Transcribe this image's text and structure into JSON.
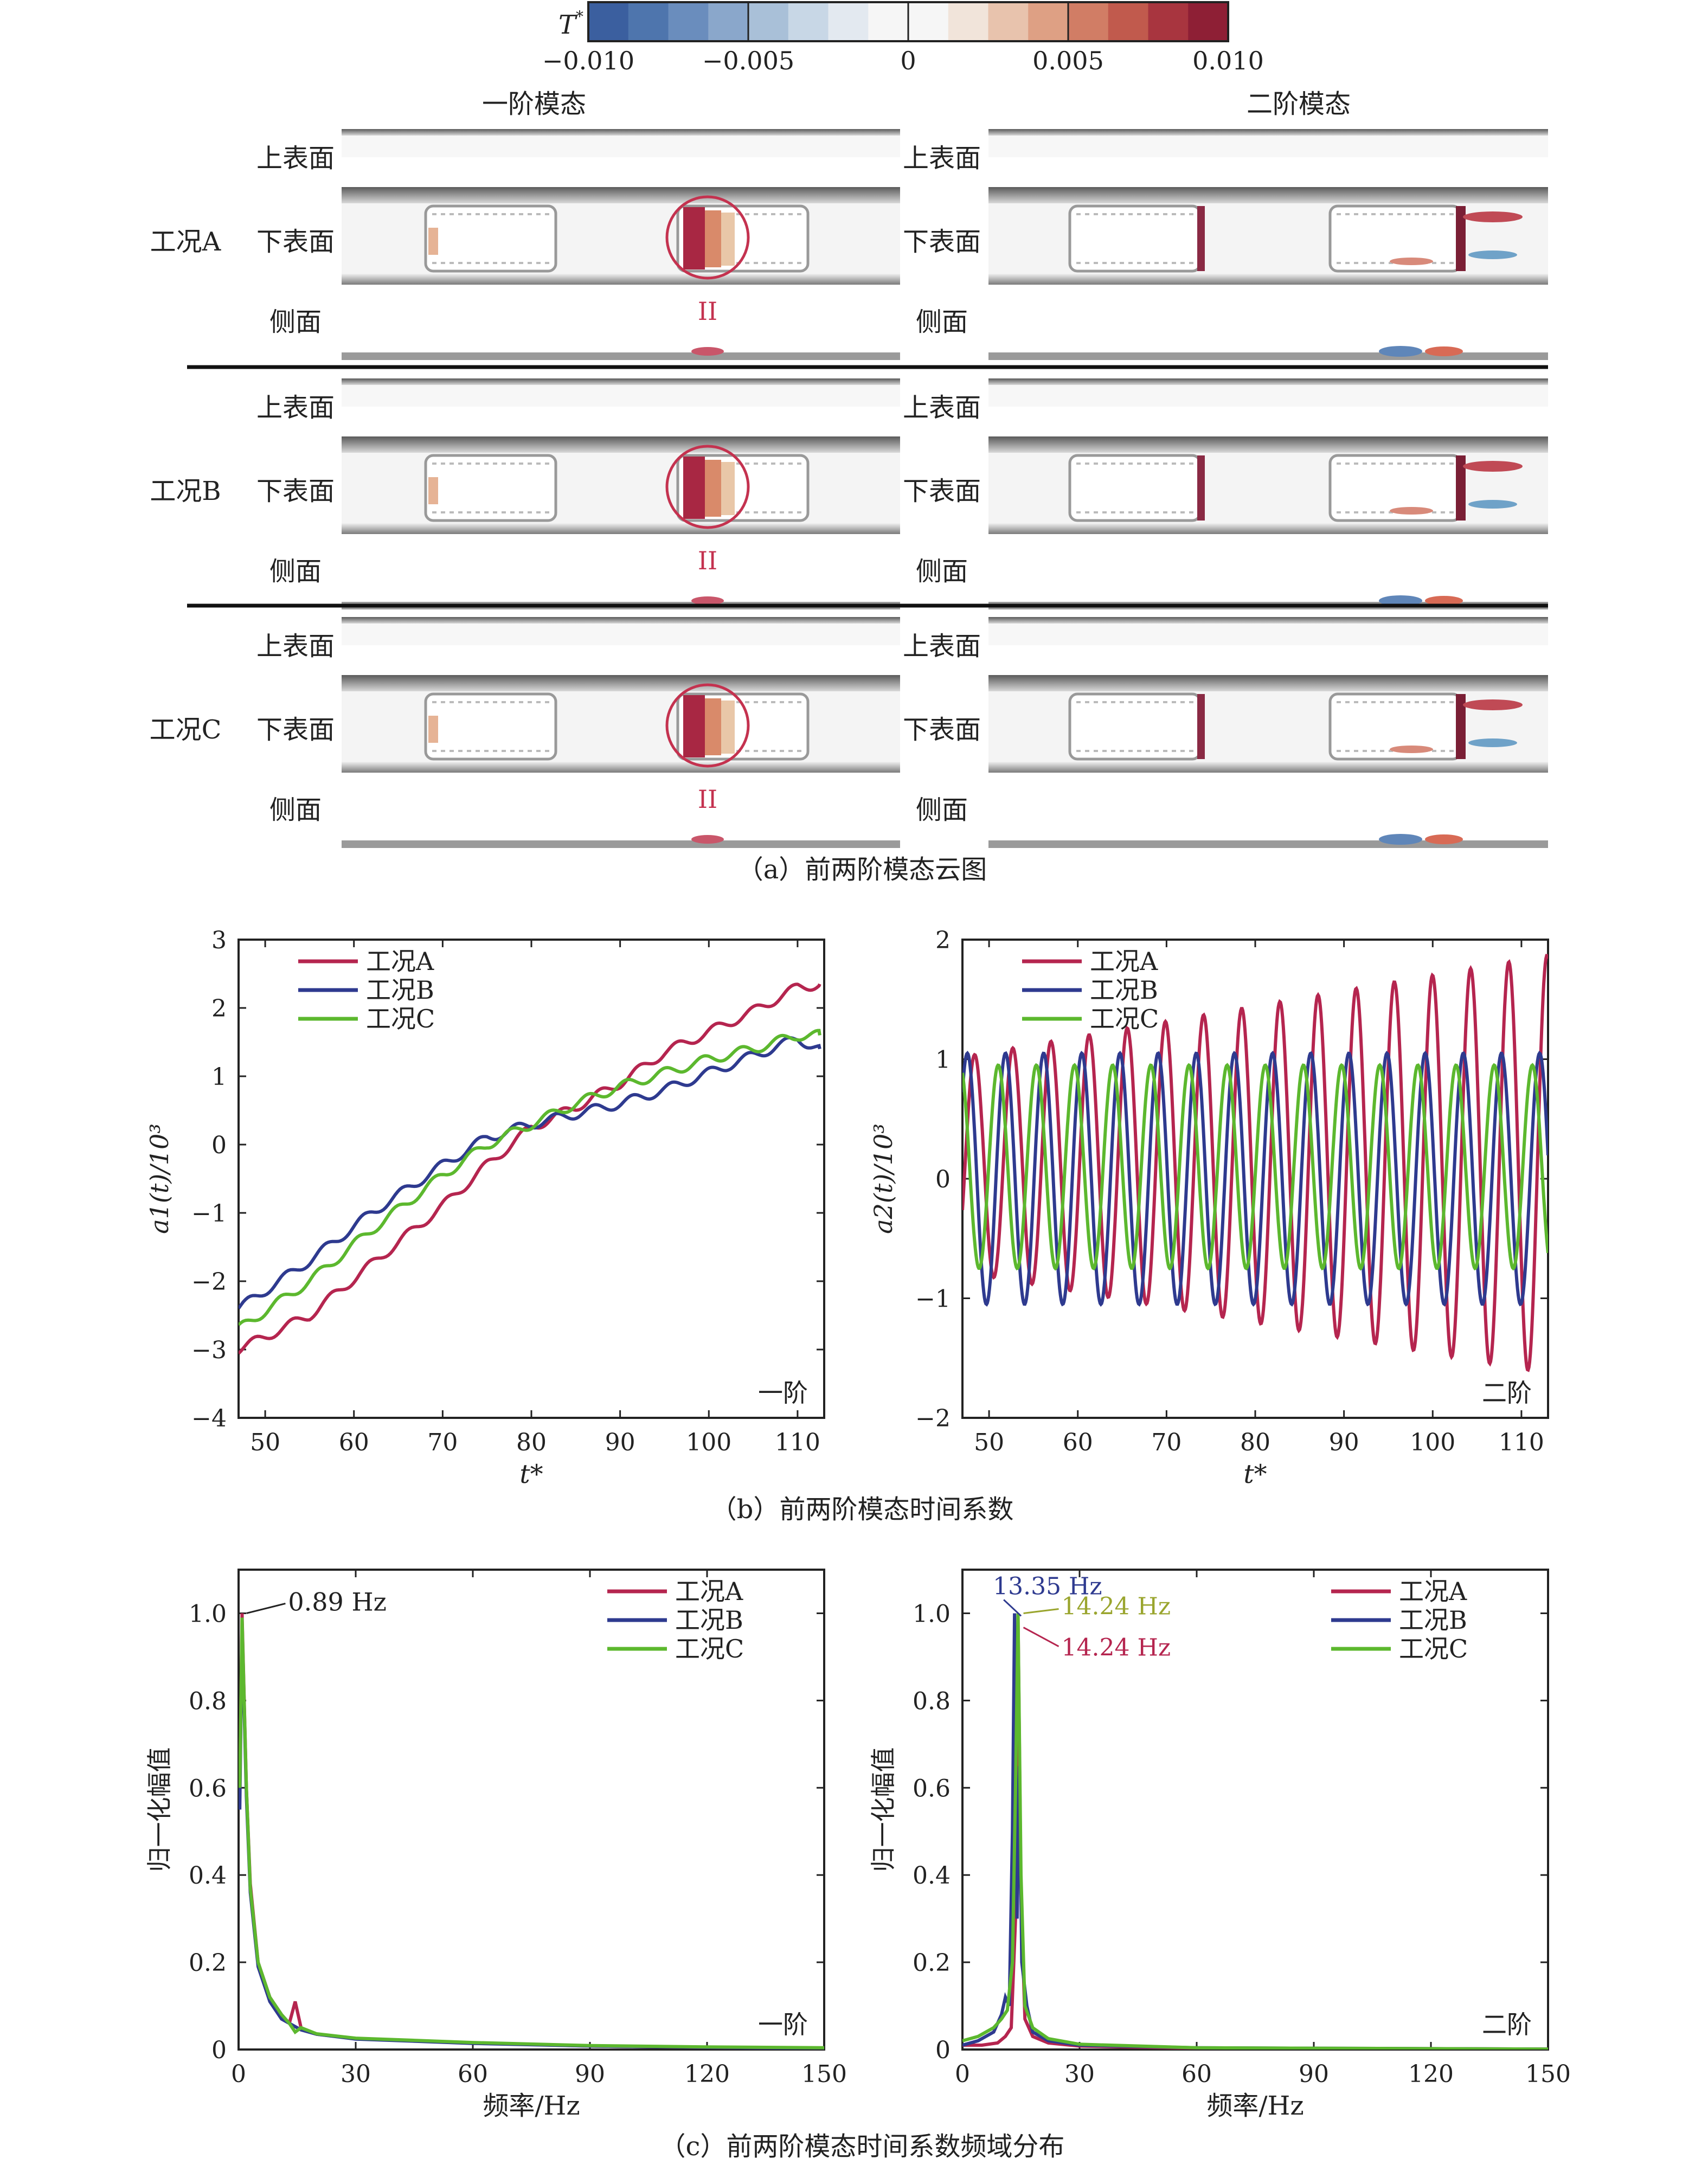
{
  "colorbar": {
    "symbol": "T",
    "sup": "*",
    "ticks": [
      "−0.010",
      "−0.005",
      "0",
      "0.005",
      "0.010"
    ],
    "colors": [
      "#3b5f9f",
      "#4e75ad",
      "#6a8dbd",
      "#8aa7cb",
      "#a9c0d8",
      "#c8d7e6",
      "#e3e9f0",
      "#f6f6f6",
      "#f6f6f6",
      "#f1e4da",
      "#e8c3ad",
      "#dea084",
      "#d17d65",
      "#c15a4d",
      "#a8353f",
      "#8e1f35"
    ]
  },
  "panel_a": {
    "col_titles": [
      "一阶模态",
      "二阶模态"
    ],
    "cases": [
      "工况A",
      "工况B",
      "工况C"
    ],
    "surfaces": [
      "上表面",
      "下表面",
      "侧面"
    ],
    "marker": "II",
    "caption": "（a）前两阶模态云图"
  },
  "panel_b_caption": "（b）前两阶模态时间系数",
  "panel_c_caption": "（c）前两阶模态时间系数频域分布",
  "legend": [
    "工况A",
    "工况B",
    "工况C"
  ],
  "series_colors": [
    "#b5254f",
    "#2e3a8f",
    "#5cb82e"
  ],
  "chart_data": [
    {
      "type": "line",
      "title": "一阶",
      "xlabel": "t*",
      "ylabel": "a1(t)/10³",
      "xlim": [
        47,
        113
      ],
      "ylim": [
        -4,
        3
      ],
      "xticks": [
        "50",
        "60",
        "70",
        "80",
        "90",
        "100",
        "110"
      ],
      "yticks": [
        "−4",
        "−3",
        "−2",
        "−1",
        "0",
        "1",
        "2",
        "3"
      ],
      "series": [
        {
          "name": "工况A",
          "x": [
            47,
            55,
            62,
            70,
            75,
            80,
            85,
            90,
            95,
            100,
            105,
            110,
            112.5
          ],
          "y": [
            -3.0,
            -2.5,
            -1.75,
            -0.9,
            -0.3,
            0.25,
            0.55,
            0.9,
            1.35,
            1.65,
            1.95,
            2.3,
            2.35
          ]
        },
        {
          "name": "工况B",
          "x": [
            47,
            55,
            62,
            70,
            75,
            80,
            85,
            90,
            95,
            100,
            105,
            110,
            112.5
          ],
          "y": [
            -2.4,
            -1.7,
            -1.0,
            -0.3,
            0.1,
            0.3,
            0.45,
            0.6,
            0.8,
            1.05,
            1.3,
            1.55,
            1.4
          ]
        },
        {
          "name": "工况C",
          "x": [
            47,
            55,
            62,
            70,
            75,
            80,
            85,
            90,
            95,
            100,
            105,
            110,
            112.5
          ],
          "y": [
            -2.7,
            -2.0,
            -1.25,
            -0.45,
            0.0,
            0.3,
            0.6,
            0.85,
            1.05,
            1.25,
            1.4,
            1.6,
            1.6
          ]
        }
      ]
    },
    {
      "type": "line",
      "title": "二阶",
      "xlabel": "t*",
      "ylabel": "a2(t)/10³",
      "xlim": [
        47,
        113
      ],
      "ylim": [
        -2,
        2
      ],
      "xticks": [
        "50",
        "60",
        "70",
        "80",
        "90",
        "100",
        "110"
      ],
      "yticks": [
        "−2",
        "−1",
        "0",
        "1",
        "2"
      ],
      "series": [
        {
          "name": "工况A",
          "period": 4.3,
          "phase": 0.0,
          "amp_start": 0.9,
          "amp_end": 1.75,
          "offset": 0.12
        },
        {
          "name": "工况B",
          "period": 4.3,
          "phase": 1.2,
          "amp_start": 1.05,
          "amp_end": 1.05,
          "offset": 0.0
        },
        {
          "name": "工况C",
          "period": 4.3,
          "phase": 2.4,
          "amp_start": 0.85,
          "amp_end": 0.85,
          "offset": 0.1
        }
      ]
    },
    {
      "type": "line",
      "title": "一阶",
      "xlabel": "频率/Hz",
      "ylabel": "归一化幅值",
      "xlim": [
        0,
        150
      ],
      "ylim": [
        0,
        1.1
      ],
      "xticks": [
        "0",
        "30",
        "60",
        "90",
        "120",
        "150"
      ],
      "yticks": [
        "0",
        "0.2",
        "0.4",
        "0.6",
        "0.8",
        "1.0"
      ],
      "annotation": "0.89 Hz",
      "peak": {
        "x": 0.89,
        "y": 1.0
      },
      "series": [
        {
          "name": "工况A",
          "x": [
            0.3,
            0.89,
            2,
            3,
            5,
            8,
            11,
            13,
            14.5,
            16,
            20,
            30,
            60,
            90,
            120,
            150
          ],
          "y": [
            0.6,
            1.0,
            0.6,
            0.38,
            0.2,
            0.12,
            0.08,
            0.06,
            0.11,
            0.05,
            0.035,
            0.025,
            0.015,
            0.008,
            0.005,
            0.003
          ]
        },
        {
          "name": "工况B",
          "x": [
            0.3,
            0.89,
            2,
            3,
            5,
            8,
            11,
            13,
            16,
            20,
            30,
            60,
            90,
            120,
            150
          ],
          "y": [
            0.55,
            0.97,
            0.58,
            0.36,
            0.19,
            0.11,
            0.07,
            0.06,
            0.045,
            0.035,
            0.024,
            0.014,
            0.008,
            0.005,
            0.003
          ]
        },
        {
          "name": "工况C",
          "x": [
            0.3,
            0.89,
            2,
            3,
            5,
            8,
            11,
            13,
            14.5,
            16,
            20,
            30,
            60,
            90,
            120,
            150
          ],
          "y": [
            0.6,
            0.99,
            0.6,
            0.37,
            0.2,
            0.12,
            0.08,
            0.06,
            0.04,
            0.05,
            0.036,
            0.026,
            0.016,
            0.009,
            0.006,
            0.004
          ]
        }
      ]
    },
    {
      "type": "line",
      "title": "二阶",
      "xlabel": "频率/Hz",
      "ylabel": "归一化幅值",
      "xlim": [
        0,
        150
      ],
      "ylim": [
        0,
        1.1
      ],
      "xticks": [
        "0",
        "30",
        "60",
        "90",
        "120",
        "150"
      ],
      "yticks": [
        "0",
        "0.2",
        "0.4",
        "0.6",
        "0.8",
        "1.0"
      ],
      "annotations": [
        {
          "label": "13.35 Hz",
          "x": 13.35,
          "y": 1.0,
          "color": "#2e3a8f"
        },
        {
          "label": "14.24 Hz",
          "x": 14.24,
          "y": 1.0,
          "color": "#9aa52e"
        },
        {
          "label": "14.24 Hz",
          "x": 14.24,
          "y": 0.98,
          "color": "#b5254f"
        }
      ],
      "series": [
        {
          "name": "工况A",
          "x": [
            0,
            5,
            9,
            11,
            12.5,
            13.6,
            14.24,
            15,
            16,
            18,
            22,
            30,
            60,
            150
          ],
          "y": [
            0.01,
            0.01,
            0.015,
            0.03,
            0.05,
            0.3,
            1.0,
            0.35,
            0.07,
            0.03,
            0.015,
            0.008,
            0.003,
            0.001
          ]
        },
        {
          "name": "工况B",
          "x": [
            0,
            4,
            8,
            10,
            11,
            12,
            12.8,
            13.35,
            14.0,
            14.6,
            15.2,
            16.5,
            18,
            22,
            30,
            60,
            150
          ],
          "y": [
            0.01,
            0.02,
            0.04,
            0.08,
            0.12,
            0.1,
            0.5,
            1.0,
            0.3,
            0.65,
            0.2,
            0.1,
            0.04,
            0.02,
            0.01,
            0.004,
            0.001
          ]
        },
        {
          "name": "工况C",
          "x": [
            0,
            4,
            8,
            10,
            11.5,
            12.8,
            13.6,
            14.24,
            15,
            16,
            18,
            22,
            30,
            60,
            150
          ],
          "y": [
            0.02,
            0.03,
            0.05,
            0.07,
            0.09,
            0.2,
            0.6,
            1.0,
            0.4,
            0.1,
            0.05,
            0.025,
            0.012,
            0.004,
            0.001
          ]
        }
      ]
    }
  ]
}
